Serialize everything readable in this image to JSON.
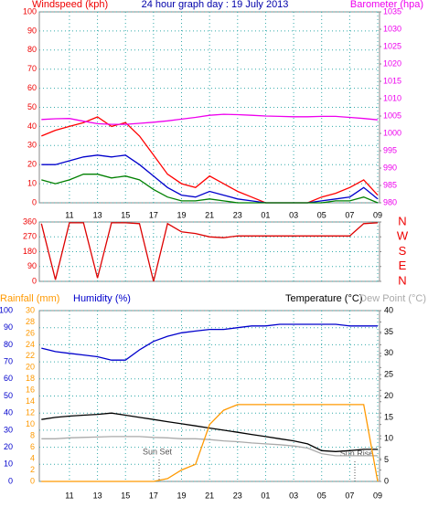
{
  "chart_data": [
    {
      "type": "line",
      "title": "24 hour graph day : 19 July 2013",
      "ylabel": "Windspeed (kph)",
      "y2label": "Barometer (hpa)",
      "x": [
        9,
        10,
        11,
        12,
        13,
        14,
        15,
        16,
        17,
        18,
        19,
        20,
        21,
        22,
        23,
        24,
        25,
        26,
        27,
        28,
        29,
        30,
        31,
        32,
        33
      ],
      "xlim": [
        8.85,
        33.13
      ],
      "xticks": [
        11,
        13,
        15,
        17,
        19,
        21,
        23,
        {
          "value": 25,
          "label": "01"
        },
        {
          "value": 27,
          "label": "03"
        },
        {
          "value": 29,
          "label": "05"
        },
        {
          "value": 31,
          "label": "07"
        },
        {
          "value": 33,
          "label": "09"
        }
      ],
      "ylim": [
        0,
        100
      ],
      "yticks": [
        0,
        10,
        20,
        30,
        40,
        50,
        60,
        70,
        80,
        90,
        100
      ],
      "y2lim": [
        980,
        1035
      ],
      "y2ticks": [
        980,
        985,
        990,
        995,
        1000,
        1005,
        1010,
        1015,
        1020,
        1025,
        1030,
        1035
      ],
      "grid": true,
      "series": [
        {
          "color": "#ff0000",
          "axis": "y",
          "values": [
            35,
            38,
            40,
            42,
            45,
            40,
            42,
            35,
            25,
            15,
            10,
            8,
            14,
            10,
            6,
            3,
            0,
            0,
            0,
            0,
            3,
            5,
            8,
            12,
            4
          ]
        },
        {
          "color": "#0000cc",
          "axis": "y",
          "values": [
            20,
            20,
            22,
            24,
            25,
            24,
            25,
            20,
            14,
            8,
            4,
            3,
            6,
            4,
            2,
            1,
            0,
            0,
            0,
            0,
            1,
            2,
            3,
            8,
            2
          ]
        },
        {
          "color": "#008000",
          "axis": "y",
          "values": [
            12,
            10,
            12,
            15,
            15,
            13,
            14,
            12,
            7,
            3,
            1,
            1,
            2,
            1,
            0,
            0,
            0,
            0,
            0,
            0,
            0,
            1,
            1,
            3,
            0
          ]
        },
        {
          "color": "#ee00ee",
          "axis": "y2",
          "values": [
            1004,
            1004.2,
            1004.3,
            1003.5,
            1002.8,
            1002.6,
            1002.6,
            1002.9,
            1003.2,
            1003.6,
            1004.1,
            1004.6,
            1005.2,
            1005.5,
            1005.4,
            1005.2,
            1005,
            1004.9,
            1004.8,
            1004.8,
            1004.9,
            1004.9,
            1004.6,
            1004.3,
            1003.9
          ]
        }
      ]
    },
    {
      "type": "line",
      "x": [
        9,
        10,
        11,
        12,
        13,
        14,
        15,
        16,
        17,
        18,
        19,
        20,
        21,
        22,
        23,
        24,
        25,
        26,
        27,
        28,
        29,
        30,
        31,
        32,
        33
      ],
      "xlim": [
        8.85,
        33.13
      ],
      "ylim": [
        0,
        360
      ],
      "yticks": [
        0,
        90,
        180,
        270,
        360
      ],
      "y2lim": [
        0,
        360
      ],
      "y2ticks": [
        {
          "value": 360,
          "label": "N"
        },
        {
          "value": 270,
          "label": "W"
        },
        {
          "value": 180,
          "label": "S"
        },
        {
          "value": 90,
          "label": "E"
        },
        {
          "value": 0,
          "label": "N"
        }
      ],
      "grid": true,
      "series": [
        {
          "color": "#dd0000",
          "axis": "y",
          "values": [
            350,
            10,
            355,
            355,
            20,
            355,
            355,
            350,
            0,
            350,
            300,
            290,
            270,
            265,
            275,
            275,
            275,
            275,
            275,
            275,
            275,
            275,
            275,
            350,
            355
          ]
        }
      ]
    },
    {
      "type": "line",
      "y3label": "Rainfall (mm)",
      "ylabel": "Humidity (%)",
      "y2label": "Temperature (°C)",
      "dewpoint_label": "Dew Point (°C)",
      "annotations": [
        "Sun Set",
        "Sun Rise"
      ],
      "x": [
        9,
        10,
        11,
        12,
        13,
        14,
        15,
        16,
        17,
        18,
        19,
        20,
        21,
        22,
        23,
        24,
        25,
        26,
        27,
        28,
        29,
        30,
        31,
        32,
        33
      ],
      "xlim": [
        8.85,
        33.13
      ],
      "xticks": [
        11,
        13,
        15,
        17,
        19,
        21,
        23,
        {
          "value": 25,
          "label": "01"
        },
        {
          "value": 27,
          "label": "03"
        },
        {
          "value": 29,
          "label": "05"
        },
        {
          "value": 31,
          "label": "07"
        },
        {
          "value": 33,
          "label": "09"
        }
      ],
      "ylim": [
        0,
        100
      ],
      "yticks": [
        0,
        10,
        20,
        30,
        40,
        50,
        60,
        70,
        80,
        90,
        100
      ],
      "y2lim": [
        0,
        40
      ],
      "y2ticks": [
        0,
        5,
        10,
        15,
        20,
        25,
        30,
        35,
        40
      ],
      "y3lim": [
        0,
        30
      ],
      "y3ticks": [
        0,
        2,
        4,
        6,
        8,
        10,
        12,
        14,
        16,
        18,
        20,
        22,
        24,
        26,
        28,
        30
      ],
      "grid": true,
      "series": [
        {
          "color": "#0000cc",
          "axis": "y",
          "values": [
            78,
            76,
            75,
            74,
            73,
            71,
            71,
            77,
            82,
            85,
            87,
            88,
            89,
            89,
            90,
            91,
            91,
            92,
            92,
            92,
            92,
            92,
            91,
            91,
            91
          ]
        },
        {
          "color": "#000000",
          "axis": "y2",
          "values": [
            14.5,
            15,
            15.3,
            15.5,
            15.7,
            16,
            15.5,
            15,
            14.5,
            14,
            13.5,
            13,
            12.5,
            12,
            11.5,
            11,
            10.5,
            10,
            9.5,
            8.8,
            7.2,
            7,
            7.2,
            7.5,
            7.5
          ]
        },
        {
          "color": "#aaaaaa",
          "axis": "y2",
          "values": [
            10,
            10,
            10.2,
            10.3,
            10.4,
            10.5,
            10.5,
            10.5,
            10.3,
            10.2,
            10,
            10,
            9.8,
            9.5,
            9.3,
            9,
            8.8,
            8.6,
            8.3,
            7.8,
            6.5,
            6,
            6,
            6,
            6
          ]
        },
        {
          "color": "#ff9900",
          "axis": "y3",
          "values": [
            0,
            0,
            0,
            0,
            0,
            0,
            0,
            0,
            0,
            0.5,
            2,
            3,
            10,
            12.5,
            13.5,
            13.5,
            13.5,
            13.5,
            13.5,
            13.5,
            13.5,
            13.5,
            13.5,
            13.5,
            0
          ]
        }
      ]
    }
  ]
}
